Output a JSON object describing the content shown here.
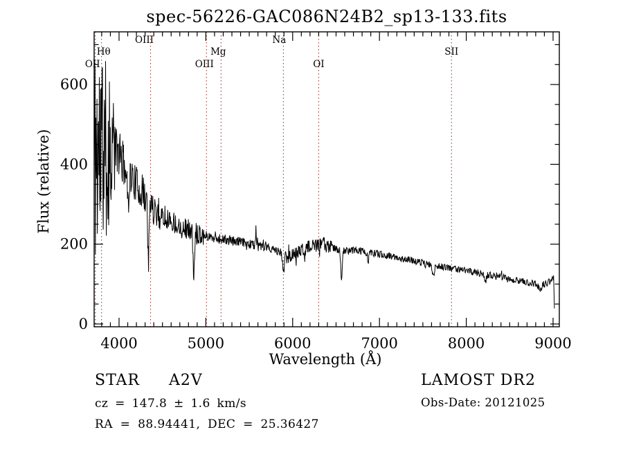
{
  "title": "spec-56226-GAC086N24B2_sp13-133.fits",
  "footer": {
    "class_label": "STAR",
    "subclass": "A2V",
    "cz_line": "cz = 147.8 ± 1.6 km/s",
    "radec_line": "RA = 88.94441, DEC = 25.36427",
    "survey": "LAMOST DR2",
    "obsdate_line": "Obs-Date: 20121025"
  },
  "chart_data": {
    "type": "line",
    "title": "spec-56226-GAC086N24B2_sp13-133.fits",
    "xlabel": "Wavelength (Å)",
    "ylabel": "Flux (relative)",
    "xlim": [
      3713,
      9072
    ],
    "ylim": [
      -7,
      732
    ],
    "x_major_ticks": [
      4000,
      5000,
      6000,
      7000,
      8000,
      9000
    ],
    "x_minor_step": 100,
    "y_major_ticks": [
      0,
      200,
      400,
      600
    ],
    "y_minor_step": 50,
    "grid": false,
    "line_color": "#000000",
    "marker_color": "#9e3535",
    "spectral_lines": [
      {
        "label": "OII",
        "wavelength": 3727,
        "row": 3,
        "dx": -4
      },
      {
        "label": "Hθ",
        "wavelength": 3798,
        "row": 2,
        "dx": 3
      },
      {
        "label": "OIII",
        "wavelength": 4363,
        "row": 1,
        "dx": -9
      },
      {
        "label": "OIII",
        "wavelength": 5007,
        "row": 3,
        "dx": -3
      },
      {
        "label": "Mg",
        "wavelength": 5175,
        "row": 2,
        "dx": -4
      },
      {
        "label": "Na",
        "wavelength": 5893,
        "row": 1,
        "dx": -6
      },
      {
        "label": "OI",
        "wavelength": 6300,
        "row": 3,
        "dx": 0
      },
      {
        "label": "SII",
        "wavelength": 7830,
        "row": 2,
        "dx": 0
      }
    ],
    "continuum": [
      [
        3713,
        380
      ],
      [
        3725,
        430
      ],
      [
        3800,
        440
      ],
      [
        3880,
        430
      ],
      [
        3940,
        450
      ],
      [
        3990,
        425
      ],
      [
        4040,
        405
      ],
      [
        4090,
        390
      ],
      [
        4150,
        365
      ],
      [
        4250,
        335
      ],
      [
        4350,
        305
      ],
      [
        4450,
        280
      ],
      [
        4550,
        265
      ],
      [
        4650,
        252
      ],
      [
        4750,
        242
      ],
      [
        4850,
        233
      ],
      [
        4950,
        225
      ],
      [
        5050,
        218
      ],
      [
        5150,
        214
      ],
      [
        5250,
        210
      ],
      [
        5350,
        207
      ],
      [
        5450,
        203
      ],
      [
        5550,
        199
      ],
      [
        5650,
        193
      ],
      [
        5750,
        188
      ],
      [
        5850,
        180
      ],
      [
        5920,
        168
      ],
      [
        5990,
        172
      ],
      [
        6080,
        182
      ],
      [
        6180,
        192
      ],
      [
        6280,
        196
      ],
      [
        6380,
        197
      ],
      [
        6480,
        190
      ],
      [
        6580,
        183
      ],
      [
        6680,
        185
      ],
      [
        6780,
        183
      ],
      [
        6880,
        179
      ],
      [
        6980,
        176
      ],
      [
        7080,
        172
      ],
      [
        7180,
        167
      ],
      [
        7280,
        163
      ],
      [
        7380,
        159
      ],
      [
        7480,
        154
      ],
      [
        7580,
        149
      ],
      [
        7680,
        145
      ],
      [
        7780,
        141
      ],
      [
        7880,
        138
      ],
      [
        7980,
        135
      ],
      [
        8080,
        131
      ],
      [
        8180,
        127
      ],
      [
        8280,
        122
      ],
      [
        8380,
        118
      ],
      [
        8480,
        113
      ],
      [
        8580,
        109
      ],
      [
        8680,
        105
      ],
      [
        8780,
        101
      ],
      [
        8870,
        98
      ],
      [
        8940,
        103
      ],
      [
        9000,
        112
      ],
      [
        9008,
        108
      ],
      [
        9012,
        60
      ],
      [
        9016,
        22
      ]
    ],
    "features": [
      {
        "center": 4102,
        "depth": -75,
        "sigma": 11
      },
      {
        "center": 4340,
        "depth": -140,
        "sigma": 9
      },
      {
        "center": 4861,
        "depth": -112,
        "sigma": 9
      },
      {
        "center": 5893,
        "depth": -38,
        "sigma": 10
      },
      {
        "center": 6563,
        "depth": -82,
        "sigma": 8
      },
      {
        "center": 6870,
        "depth": -22,
        "sigma": 8
      },
      {
        "center": 7620,
        "depth": -30,
        "sigma": 12
      },
      {
        "center": 8220,
        "depth": -18,
        "sigma": 12
      },
      {
        "center": 8850,
        "depth": -14,
        "sigma": 14
      },
      {
        "center": 5577,
        "depth": 58,
        "sigma": 3.5
      },
      {
        "center": 6360,
        "depth": 22,
        "sigma": 3
      }
    ],
    "noise_zones": [
      [
        3713,
        3755,
        295
      ],
      [
        3755,
        3815,
        270
      ],
      [
        3815,
        3905,
        230
      ],
      [
        3905,
        3955,
        130
      ],
      [
        3955,
        4060,
        55
      ],
      [
        4060,
        4480,
        45
      ],
      [
        4480,
        4980,
        26
      ],
      [
        4980,
        5560,
        12
      ],
      [
        5560,
        5890,
        11
      ],
      [
        5890,
        6450,
        17
      ],
      [
        6450,
        7150,
        9
      ],
      [
        7150,
        8150,
        8
      ],
      [
        8150,
        9016,
        9
      ]
    ],
    "sample_step": 4.5,
    "noise_seed": 11
  }
}
